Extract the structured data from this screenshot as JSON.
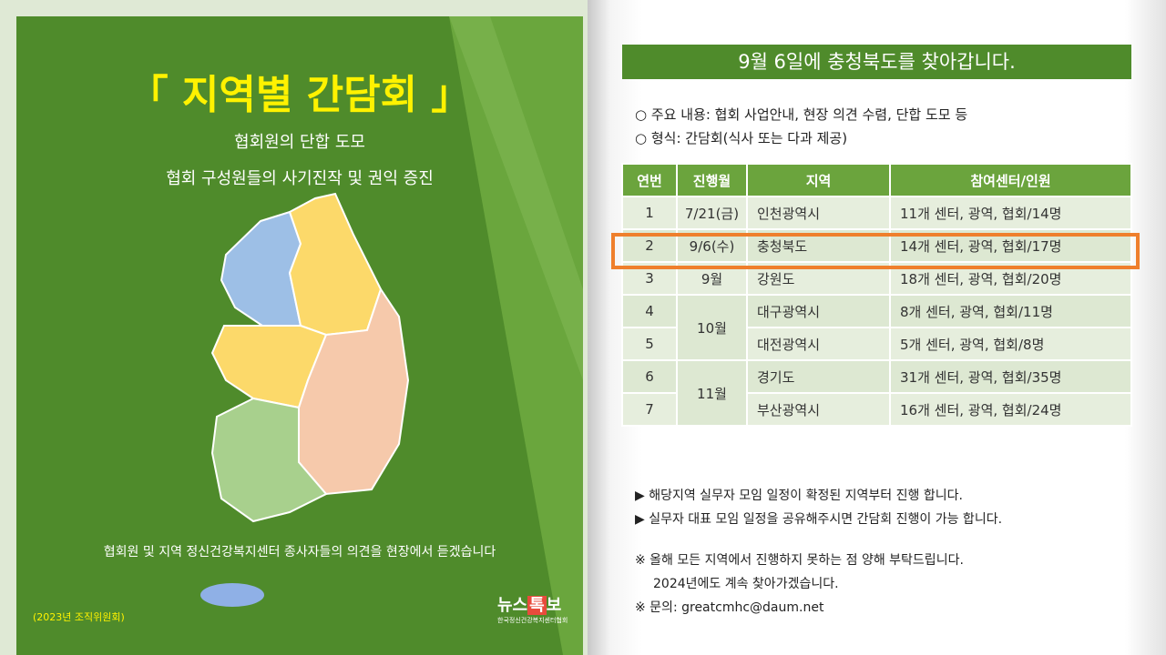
{
  "left": {
    "title": "「 지역별 간담회 」",
    "subtitle_lines": [
      "협회원의 단합 도모",
      "협회 구성원들의 사기진작 및 권익 증진"
    ],
    "footer": "협회원 및 지역 정신건강복지센터  종사자들의 의견을 현장에서 듣겠습니다",
    "note": "(2023년 조직위원회)",
    "logo": {
      "parts": [
        "뉴스",
        "톡",
        "보"
      ],
      "sub": "한국정신건강복지센터협회"
    }
  },
  "right": {
    "header": "9월 6일에 충청북도를 찾아갑니다.",
    "bullets": [
      "○ 주요 내용: 협회 사업안내, 현장 의견 수렴, 단합 도모 등",
      "○ 형식: 간담회(식사 또는 다과 제공)"
    ],
    "table": {
      "columns": [
        "연번",
        "진행월",
        "지역",
        "참여센터/인원"
      ],
      "rows": [
        [
          "1",
          "7/21(금)",
          "인천광역시",
          "11개 센터, 광역, 협회/14명"
        ],
        [
          "2",
          "9/6(수)",
          "충청북도",
          "14개 센터, 광역, 협회/17명"
        ],
        [
          "3",
          "9월",
          "강원도",
          "18개 센터, 광역, 협회/20명"
        ],
        [
          "4",
          "10월",
          "대구광역시",
          "8개 센터, 광역, 협회/11명"
        ],
        [
          "5",
          null,
          "대전광역시",
          "5개 센터, 광역, 협회/8명"
        ],
        [
          "6",
          "11월",
          "경기도",
          "31개 센터, 광역, 협회/35명"
        ],
        [
          "7",
          null,
          "부산광역시",
          "16개 센터, 광역, 협회/24명"
        ]
      ]
    },
    "notes": [
      "▶ 해당지역 실무자 모임 일정이 확정된 지역부터 진행 합니다.",
      "▶ 실무자 대표 모임 일정을 공유해주시면 간담회 진행이 가능 합니다."
    ],
    "remarks": [
      "※ 올해 모든 지역에서 진행하지 못하는 점 양해 부탁드립니다.",
      "2024년에도 계속 찾아가겠습니다.",
      "※ 문의: greatcmhc@daum.net"
    ]
  }
}
